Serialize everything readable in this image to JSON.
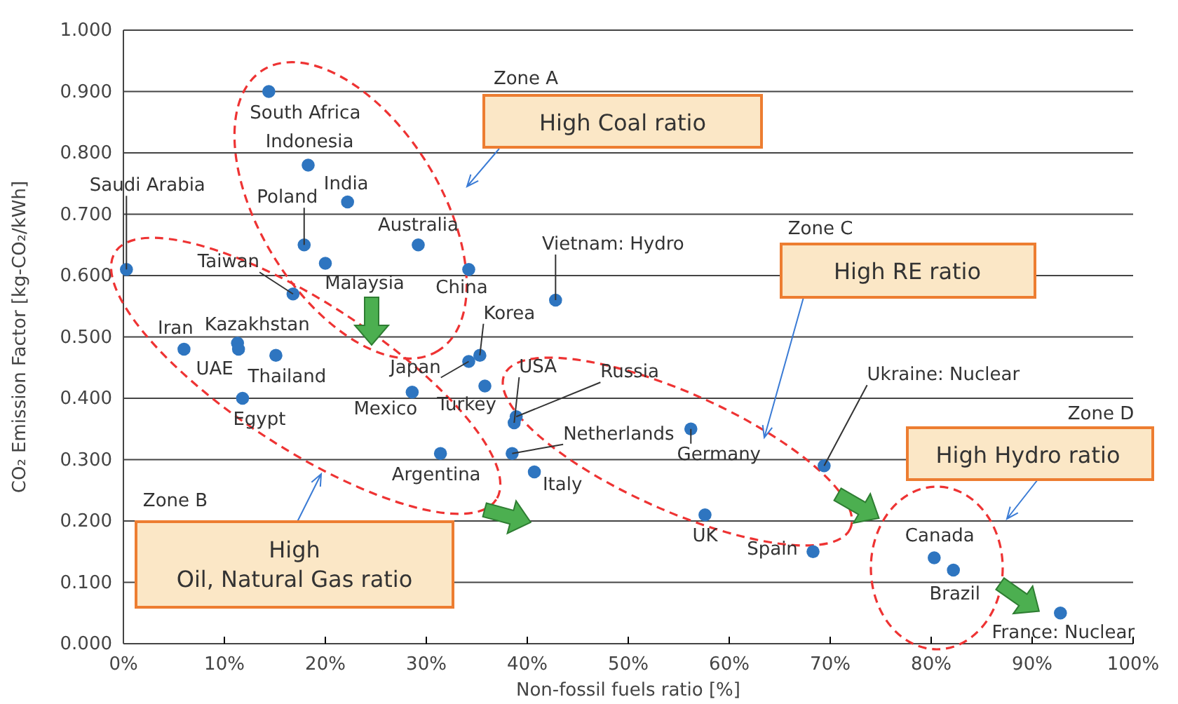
{
  "chart_data": {
    "type": "scatter",
    "xlabel": "Non-fossil fuels ratio [%]",
    "ylabel": "CO₂ Emission Factor [kg-CO₂/kWh]",
    "xlim": [
      0,
      100
    ],
    "xticks": [
      {
        "value": 0,
        "label": "0%"
      },
      {
        "value": 10,
        "label": "10%"
      },
      {
        "value": 20,
        "label": "20%"
      },
      {
        "value": 30,
        "label": "30%"
      },
      {
        "value": 40,
        "label": "40%"
      },
      {
        "value": 50,
        "label": "50%"
      },
      {
        "value": 60,
        "label": "60%"
      },
      {
        "value": 70,
        "label": "70%"
      },
      {
        "value": 80,
        "label": "80%"
      },
      {
        "value": 90,
        "label": "90%"
      },
      {
        "value": 100,
        "label": "100%"
      }
    ],
    "ylim": [
      0,
      1
    ],
    "yticks": [
      {
        "value": 0,
        "label": "0.000"
      },
      {
        "value": 0.1,
        "label": "0.100"
      },
      {
        "value": 0.2,
        "label": "0.200"
      },
      {
        "value": 0.3,
        "label": "0.300"
      },
      {
        "value": 0.4,
        "label": "0.400"
      },
      {
        "value": 0.5,
        "label": "0.500"
      },
      {
        "value": 0.6,
        "label": "0.600"
      },
      {
        "value": 0.7,
        "label": "0.700"
      },
      {
        "value": 0.8,
        "label": "0.800"
      },
      {
        "value": 0.9,
        "label": "0.900"
      },
      {
        "value": 1,
        "label": "1.000"
      }
    ],
    "grid": "y",
    "marker": "circle",
    "series": [
      {
        "color": "#2e75c0",
        "x": [
          14.4,
          18.3,
          22.2,
          17.9,
          29.2,
          20.0,
          34.2,
          0.3,
          16.8,
          42.8,
          6.0,
          11.3,
          11.4,
          15.1,
          35.3,
          34.2,
          35.8,
          11.8,
          28.6,
          38.7,
          38.9,
          38.5,
          56.2,
          31.4,
          40.7,
          69.4,
          57.6,
          68.3,
          80.3,
          82.2,
          92.8
        ],
        "values": [
          0.9,
          0.78,
          0.72,
          0.65,
          0.65,
          0.62,
          0.61,
          0.61,
          0.57,
          0.56,
          0.48,
          0.49,
          0.48,
          0.47,
          0.47,
          0.46,
          0.42,
          0.4,
          0.41,
          0.36,
          0.37,
          0.31,
          0.35,
          0.31,
          0.28,
          0.29,
          0.21,
          0.15,
          0.14,
          0.12,
          0.05
        ]
      }
    ],
    "annotations": [
      {
        "text": "South Africa",
        "x": 14.4,
        "y": 0.9
      },
      {
        "text": "Indonesia",
        "x": 18.3,
        "y": 0.78
      },
      {
        "text": "India",
        "x": 22.2,
        "y": 0.72
      },
      {
        "text": "Poland",
        "x": 17.9,
        "y": 0.65
      },
      {
        "text": "Australia",
        "x": 29.2,
        "y": 0.65
      },
      {
        "text": "Malaysia",
        "x": 20.0,
        "y": 0.62
      },
      {
        "text": "China",
        "x": 34.2,
        "y": 0.61
      },
      {
        "text": "Saudi Arabia",
        "x": 0.3,
        "y": 0.61
      },
      {
        "text": "Taiwan",
        "x": 16.8,
        "y": 0.57
      },
      {
        "text": "Vietnam: Hydro",
        "x": 42.8,
        "y": 0.56
      },
      {
        "text": "Iran",
        "x": 6.0,
        "y": 0.48
      },
      {
        "text": "Kazakhstan",
        "x": 11.3,
        "y": 0.49
      },
      {
        "text": "UAE",
        "x": 11.4,
        "y": 0.48
      },
      {
        "text": "Thailand",
        "x": 15.1,
        "y": 0.47
      },
      {
        "text": "Korea",
        "x": 35.3,
        "y": 0.47
      },
      {
        "text": "Japan",
        "x": 34.2,
        "y": 0.46
      },
      {
        "text": "Turkey",
        "x": 35.8,
        "y": 0.42
      },
      {
        "text": "Egypt",
        "x": 11.8,
        "y": 0.4
      },
      {
        "text": "Mexico",
        "x": 28.6,
        "y": 0.41
      },
      {
        "text": "USA",
        "x": 38.7,
        "y": 0.36
      },
      {
        "text": "Russia",
        "x": 38.9,
        "y": 0.37
      },
      {
        "text": "Netherlands",
        "x": 38.5,
        "y": 0.31
      },
      {
        "text": "Germany",
        "x": 56.2,
        "y": 0.35
      },
      {
        "text": "Argentina",
        "x": 31.4,
        "y": 0.31
      },
      {
        "text": "Italy",
        "x": 40.7,
        "y": 0.28
      },
      {
        "text": "Ukraine: Nuclear",
        "x": 69.4,
        "y": 0.29
      },
      {
        "text": "UK",
        "x": 57.6,
        "y": 0.21
      },
      {
        "text": "Spain",
        "x": 68.3,
        "y": 0.15
      },
      {
        "text": "Canada",
        "x": 80.3,
        "y": 0.14
      },
      {
        "text": "Brazil",
        "x": 82.2,
        "y": 0.12
      },
      {
        "text": "France: Nuclear",
        "x": 92.8,
        "y": 0.05
      },
      "Zone A",
      "High Coal ratio",
      "Zone B",
      "High\nOil, Natural Gas ratio",
      "Zone C",
      "High RE ratio",
      "Zone D",
      "High Hydro ratio"
    ]
  }
}
